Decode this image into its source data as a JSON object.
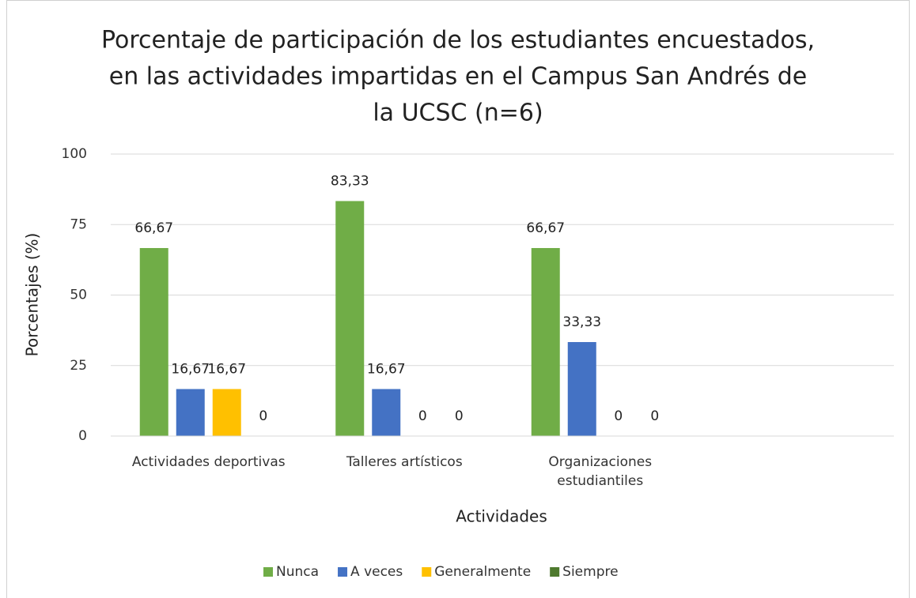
{
  "chart_data": {
    "type": "bar",
    "title": [
      "Porcentaje de participación de los estudiantes encuestados,",
      "en las actividades impartidas en el Campus San Andrés de",
      "la UCSC (n=6)"
    ],
    "x_label": "Actividades",
    "y_label": "Porcentajes (%)",
    "categories": [
      "Actividades deportivas",
      "Talleres artísticos",
      "Organizaciones estudiantiles",
      null
    ],
    "series": [
      {
        "name": "Nunca",
        "color": "#70ad47",
        "values": [
          66.67,
          83.33,
          66.67,
          null
        ],
        "value_labels": [
          "66,67",
          "83,33",
          "66,67",
          null
        ]
      },
      {
        "name": "A veces",
        "color": "#4472c4",
        "values": [
          16.67,
          16.67,
          33.33,
          null
        ],
        "value_labels": [
          "16,67",
          "16,67",
          "33,33",
          null
        ]
      },
      {
        "name": "Generalmente",
        "color": "#ffc000",
        "values": [
          16.67,
          0,
          0,
          null
        ],
        "value_labels": [
          "16,67",
          "0",
          "0",
          null
        ]
      },
      {
        "name": "Siempre",
        "color": "#4e7a2e",
        "values": [
          0,
          0,
          0,
          null
        ],
        "value_labels": [
          "0",
          "0",
          "0",
          null
        ]
      }
    ],
    "ylim": [
      0,
      100
    ],
    "yticks": [
      0,
      25,
      50,
      75,
      100
    ],
    "grid": true,
    "legend": "bottom"
  }
}
